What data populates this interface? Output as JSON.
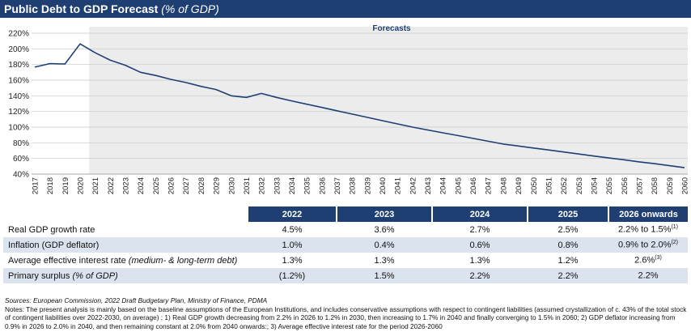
{
  "header": {
    "title": "Public Debt to GDP Forecast",
    "subtitle": "(% of GDP)"
  },
  "colors": {
    "title_bg": "#1f3f73",
    "line": "#1f3f73",
    "forecast_bg": "#ececec",
    "forecast_label": "#1f3f73",
    "table_header_bg": "#1f3f73",
    "table_shade": "#dbe3ef"
  },
  "chart_data": {
    "type": "line",
    "title": "Public Debt to GDP Forecast (% of GDP)",
    "xlabel": "",
    "ylabel": "",
    "ylim": [
      40,
      220
    ],
    "yticks": [
      40,
      60,
      80,
      100,
      120,
      140,
      160,
      180,
      200,
      220
    ],
    "ytick_suffix": "%",
    "x": [
      2017,
      2018,
      2019,
      2020,
      2021,
      2022,
      2023,
      2024,
      2025,
      2026,
      2027,
      2028,
      2029,
      2030,
      2031,
      2032,
      2033,
      2034,
      2035,
      2036,
      2037,
      2038,
      2039,
      2040,
      2041,
      2042,
      2043,
      2044,
      2045,
      2046,
      2047,
      2048,
      2049,
      2050,
      2051,
      2052,
      2053,
      2054,
      2055,
      2056,
      2057,
      2058,
      2059,
      2060
    ],
    "series": [
      {
        "name": "Public debt to GDP",
        "values": [
          176.7,
          181.2,
          180.7,
          206.3,
          195.0,
          185.4,
          179.0,
          170.0,
          166.0,
          161.0,
          157.0,
          152.0,
          148.0,
          140.0,
          138.0,
          143.0,
          138.0,
          133.5,
          129.3,
          125.1,
          120.9,
          116.7,
          112.5,
          108.3,
          104.1,
          100.0,
          96.4,
          92.8,
          89.2,
          85.6,
          82.0,
          78.4,
          75.9,
          73.3,
          70.8,
          68.2,
          65.7,
          63.1,
          60.6,
          58.3,
          55.6,
          53.3,
          50.8,
          48.2
        ]
      }
    ],
    "forecast_start_year": 2021,
    "annotation": "Forecasts",
    "grid": true
  },
  "table": {
    "columns": [
      "2022",
      "2023",
      "2024",
      "2025",
      "2026 onwards"
    ],
    "rows": [
      {
        "label": "Real GDP growth rate",
        "label_em": "",
        "values": [
          "4.5%",
          "3.6%",
          "2.7%",
          "2.5%",
          "2.2% to 1.5%"
        ],
        "last_sup": "(1)"
      },
      {
        "label": "Inflation (GDP deflator)",
        "label_em": "",
        "values": [
          "1.0%",
          "0.4%",
          "0.6%",
          "0.8%",
          "0.9% to 2.0%"
        ],
        "last_sup": "(2)"
      },
      {
        "label": "Average effective interest rate ",
        "label_em": "(medium- & long-term debt)",
        "values": [
          "1.3%",
          "1.3%",
          "1.3%",
          "1.2%",
          "2.6%"
        ],
        "last_sup": "(3)"
      },
      {
        "label": "Primary surplus ",
        "label_em": "(% of GDP)",
        "values": [
          "(1.2%)",
          "1.5%",
          "2.2%",
          "2.2%",
          "2.2%"
        ],
        "last_sup": ""
      }
    ]
  },
  "footer": {
    "sources": "Sources: European Commission, 2022 Draft Budgetary Plan, Ministry of Finance, PDMA",
    "notes": "Notes: The present analysis is mainly based on the baseline assumptions of the European Institutions, and includes conservative assumptions with respect to contingent liabilities (assumed crystallization of c. 43% of the total stock of contingent liabilities over 2022-2030, on average) ; 1) Real GDP growth decreasing from 2.2% in 2026 to 1.2% in 2030, then increasing to 1.7% in 2040 and finally converging to 1.5% in 2060; 2) GDP deflator increasing from 0.9% in 2026 to 2.0% in 2040, and then remaining constant at 2.0% from 2040 onwards:; 3) Average effective interest rate for the period 2026-2060"
  }
}
